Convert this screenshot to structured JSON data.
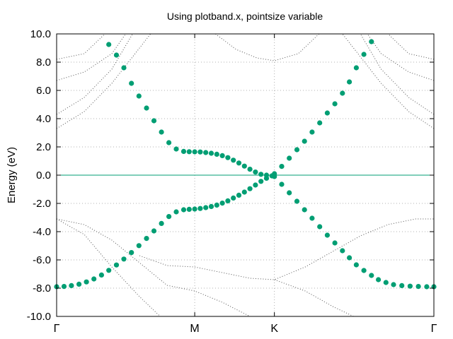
{
  "chart_data": {
    "type": "scatter",
    "title": "Using plotband.x, pointsize variable",
    "xlabel": "",
    "ylabel": "Energy (eV)",
    "ylim": [
      -10.0,
      10.0
    ],
    "yticks": [
      "10.0",
      "8.0",
      "6.0",
      "4.0",
      "2.0",
      "0.0",
      "-2.0",
      "-4.0",
      "-6.0",
      "-8.0",
      "-10.0"
    ],
    "ytick_values": [
      10,
      8,
      6,
      4,
      2,
      0,
      -2,
      -4,
      -6,
      -8,
      -10
    ],
    "xticks": [
      {
        "label": "Γ",
        "x": 0.0
      },
      {
        "label": "M",
        "x": 1.0
      },
      {
        "label": "K",
        "x": 1.577
      },
      {
        "label": "Γ",
        "x": 2.732
      }
    ],
    "xlim": [
      0.0,
      2.732
    ],
    "grid": true,
    "fermi_level": 0.0,
    "colors": {
      "point": "#009e73",
      "dotted_band": "#555555",
      "grid": "#b0b0b0",
      "zero_line": "#009e73"
    },
    "series": [
      {
        "values": [
          [
            0.0,
            -7.9
          ],
          [
            0.054,
            -7.88
          ],
          [
            0.107,
            -7.82
          ],
          [
            0.162,
            -7.72
          ],
          [
            0.216,
            -7.56
          ],
          [
            0.27,
            -7.35
          ],
          [
            0.325,
            -7.07
          ],
          [
            0.378,
            -6.74
          ],
          [
            0.433,
            -6.36
          ],
          [
            0.487,
            -5.94
          ],
          [
            0.542,
            -5.48
          ],
          [
            0.596,
            -4.99
          ],
          [
            0.651,
            -4.48
          ],
          [
            0.705,
            -3.95
          ],
          [
            0.759,
            -3.42
          ],
          [
            0.813,
            -2.93
          ],
          [
            0.866,
            -2.6
          ],
          [
            0.92,
            -2.45
          ],
          [
            0.96,
            -2.42
          ],
          [
            1.0,
            -2.4
          ],
          [
            1.04,
            -2.36
          ],
          [
            1.08,
            -2.3
          ],
          [
            1.12,
            -2.22
          ],
          [
            1.16,
            -2.12
          ],
          [
            1.2,
            -1.98
          ],
          [
            1.24,
            -1.82
          ],
          [
            1.28,
            -1.62
          ],
          [
            1.32,
            -1.42
          ],
          [
            1.36,
            -1.2
          ],
          [
            1.4,
            -0.96
          ],
          [
            1.44,
            -0.7
          ],
          [
            1.48,
            -0.44
          ],
          [
            1.52,
            -0.22
          ],
          [
            1.56,
            -0.05
          ]
        ]
      },
      {
        "values": [
          [
            0.378,
            9.25
          ],
          [
            0.433,
            8.5
          ],
          [
            0.487,
            7.6
          ],
          [
            0.542,
            6.5
          ],
          [
            0.596,
            5.6
          ],
          [
            0.651,
            4.75
          ],
          [
            0.705,
            3.85
          ],
          [
            0.759,
            3.05
          ],
          [
            0.813,
            2.3
          ],
          [
            0.866,
            1.85
          ],
          [
            0.92,
            1.68
          ],
          [
            0.96,
            1.66
          ],
          [
            1.0,
            1.65
          ],
          [
            1.04,
            1.64
          ],
          [
            1.08,
            1.6
          ],
          [
            1.12,
            1.55
          ],
          [
            1.16,
            1.48
          ],
          [
            1.2,
            1.38
          ],
          [
            1.24,
            1.24
          ],
          [
            1.28,
            1.06
          ],
          [
            1.32,
            0.86
          ],
          [
            1.36,
            0.64
          ],
          [
            1.4,
            0.42
          ],
          [
            1.44,
            0.22
          ],
          [
            1.48,
            0.06
          ],
          [
            1.52,
            0.0
          ],
          [
            1.56,
            -0.05
          ]
        ]
      },
      {
        "values": [
          [
            1.577,
            0.1
          ],
          [
            1.63,
            0.62
          ],
          [
            1.685,
            1.2
          ],
          [
            1.74,
            1.8
          ],
          [
            1.795,
            2.4
          ],
          [
            1.85,
            3.05
          ],
          [
            1.905,
            3.7
          ],
          [
            1.96,
            4.4
          ],
          [
            2.015,
            5.05
          ],
          [
            2.07,
            5.8
          ],
          [
            2.12,
            6.6
          ],
          [
            2.17,
            7.6
          ],
          [
            2.225,
            8.55
          ],
          [
            2.28,
            9.45
          ]
        ]
      },
      {
        "values": [
          [
            1.577,
            -0.1
          ],
          [
            1.63,
            -0.65
          ],
          [
            1.685,
            -1.25
          ],
          [
            1.74,
            -1.85
          ],
          [
            1.795,
            -2.45
          ],
          [
            1.85,
            -3.05
          ],
          [
            1.905,
            -3.65
          ],
          [
            1.96,
            -4.25
          ],
          [
            2.015,
            -4.8
          ],
          [
            2.07,
            -5.35
          ],
          [
            2.12,
            -5.85
          ],
          [
            2.17,
            -6.35
          ],
          [
            2.225,
            -6.75
          ],
          [
            2.28,
            -7.1
          ],
          [
            2.33,
            -7.4
          ],
          [
            2.385,
            -7.6
          ],
          [
            2.44,
            -7.75
          ],
          [
            2.5,
            -7.82
          ],
          [
            2.56,
            -7.86
          ],
          [
            2.62,
            -7.88
          ],
          [
            2.68,
            -7.9
          ],
          [
            2.732,
            -7.9
          ]
        ]
      }
    ],
    "background_bands": [
      [
        [
          0.0,
          -3.1
        ],
        [
          0.2,
          -3.5
        ],
        [
          0.4,
          -4.6
        ],
        [
          0.6,
          -6.2
        ],
        [
          0.8,
          -7.8
        ],
        [
          1.0,
          -8.2
        ],
        [
          1.2,
          -9.0
        ],
        [
          1.4,
          -10.0
        ]
      ],
      [
        [
          0.0,
          -3.1
        ],
        [
          0.2,
          -4.2
        ],
        [
          0.4,
          -6.5
        ],
        [
          0.6,
          -8.6
        ],
        [
          0.75,
          -10.0
        ]
      ],
      [
        [
          0.6,
          -5.7
        ],
        [
          0.8,
          -6.4
        ],
        [
          1.0,
          -6.5
        ],
        [
          1.2,
          -6.9
        ],
        [
          1.4,
          -7.3
        ],
        [
          1.577,
          -7.4
        ],
        [
          1.8,
          -6.5
        ],
        [
          2.0,
          -5.4
        ],
        [
          2.2,
          -4.3
        ],
        [
          2.4,
          -3.5
        ],
        [
          2.6,
          -3.1
        ],
        [
          2.732,
          -3.1
        ]
      ],
      [
        [
          1.577,
          -7.4
        ],
        [
          1.8,
          -8.2
        ],
        [
          2.0,
          -9.3
        ],
        [
          2.15,
          -10.0
        ]
      ],
      [
        [
          0.0,
          3.3
        ],
        [
          0.2,
          4.5
        ],
        [
          0.4,
          6.5
        ],
        [
          0.6,
          9.0
        ],
        [
          0.68,
          10.0
        ]
      ],
      [
        [
          0.0,
          4.3
        ],
        [
          0.2,
          5.5
        ],
        [
          0.4,
          7.5
        ],
        [
          0.55,
          10.0
        ]
      ],
      [
        [
          0.0,
          6.7
        ],
        [
          0.2,
          7.3
        ],
        [
          0.4,
          8.6
        ],
        [
          0.5,
          10.0
        ]
      ],
      [
        [
          0.0,
          8.2
        ],
        [
          0.2,
          8.6
        ],
        [
          0.35,
          10.0
        ]
      ],
      [
        [
          1.15,
          10.0
        ],
        [
          1.3,
          8.9
        ],
        [
          1.45,
          8.3
        ],
        [
          1.577,
          8.1
        ],
        [
          1.75,
          8.6
        ],
        [
          1.9,
          10.0
        ]
      ],
      [
        [
          2.732,
          3.3
        ],
        [
          2.55,
          4.5
        ],
        [
          2.35,
          6.5
        ],
        [
          2.15,
          9.0
        ],
        [
          2.07,
          10.0
        ]
      ],
      [
        [
          2.732,
          4.3
        ],
        [
          2.55,
          5.5
        ],
        [
          2.35,
          7.5
        ],
        [
          2.2,
          10.0
        ]
      ],
      [
        [
          2.732,
          6.7
        ],
        [
          2.55,
          7.3
        ],
        [
          2.35,
          8.6
        ],
        [
          2.25,
          10.0
        ]
      ],
      [
        [
          2.732,
          8.2
        ],
        [
          2.55,
          8.6
        ],
        [
          2.4,
          10.0
        ]
      ]
    ]
  }
}
